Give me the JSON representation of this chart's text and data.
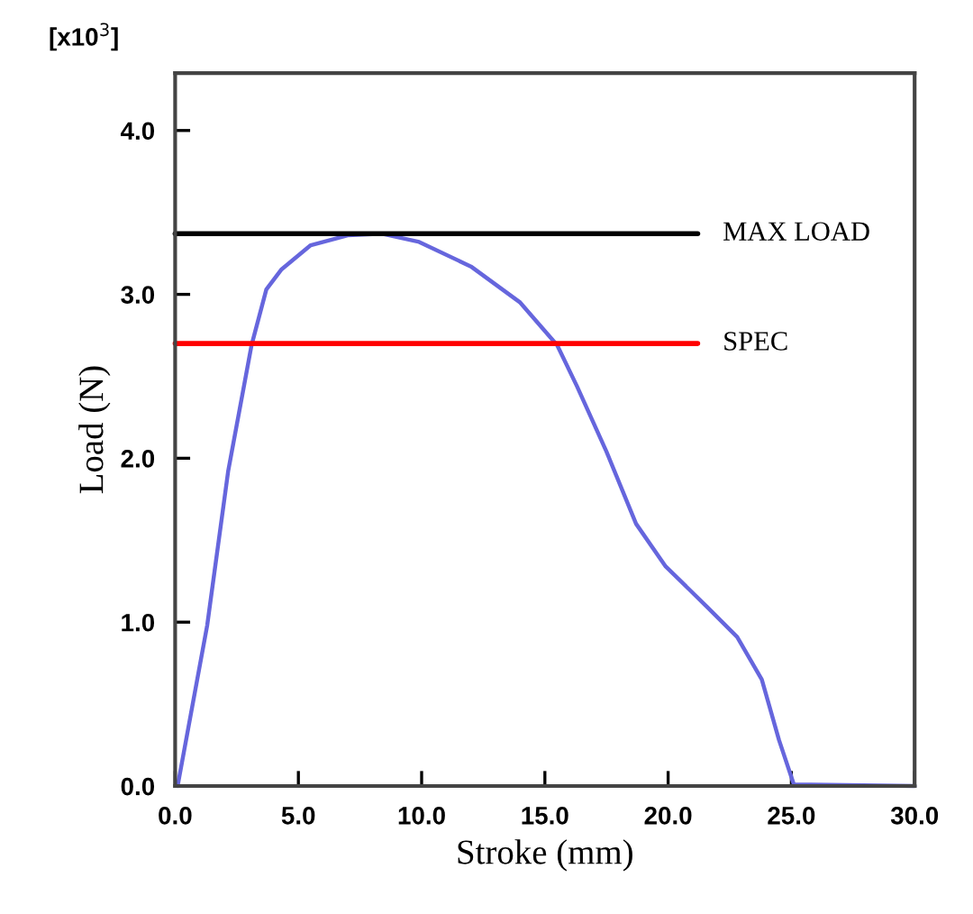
{
  "chart_data": {
    "type": "line",
    "xlabel": "Stroke (mm)",
    "ylabel": "Load (N)",
    "annotations": [
      "[x10$^{3}$]"
    ],
    "xlim": [
      0,
      30
    ],
    "xticks": [
      {
        "value": 0,
        "label": "0.0"
      },
      {
        "value": 5,
        "label": "5.0"
      },
      {
        "value": 10,
        "label": "10.0"
      },
      {
        "value": 15,
        "label": "15.0"
      },
      {
        "value": 20,
        "label": "20.0"
      },
      {
        "value": 25,
        "label": "25.0"
      },
      {
        "value": 30,
        "label": "30.0"
      }
    ],
    "ylim": [
      0,
      4.35
    ],
    "yticks": [
      {
        "value": 0,
        "label": "0.0"
      },
      {
        "value": 1,
        "label": "1.0"
      },
      {
        "value": 2,
        "label": "2.0"
      },
      {
        "value": 3,
        "label": "3.0"
      },
      {
        "value": 4,
        "label": "4.0"
      }
    ],
    "grid": false,
    "legend": false,
    "marker": "none",
    "line_style": "solid",
    "series": [
      {
        "color": "#6666dd",
        "x": [
          0.1,
          1.3,
          2.15,
          3.1,
          3.7,
          4.3,
          5.5,
          7.0,
          8.4,
          9.9,
          12.0,
          14.0,
          15.5,
          16.3,
          17.5,
          18.7,
          19.9,
          21.6,
          22.8,
          23.8,
          24.5,
          25.1,
          30.0
        ],
        "values": [
          0,
          0.98,
          1.92,
          2.69,
          3.03,
          3.15,
          3.3,
          3.36,
          3.37,
          3.32,
          3.17,
          2.95,
          2.69,
          2.44,
          2.04,
          1.6,
          1.34,
          1.09,
          0.91,
          0.65,
          0.28,
          0.01,
          0
        ]
      },
      {
        "name": "MAX LOAD",
        "color": "#000000",
        "x": [
          0,
          21.2
        ],
        "values": [
          3.37,
          3.37
        ]
      },
      {
        "name": "SPEC",
        "color": "#ff0000",
        "x": [
          0,
          21.2
        ],
        "values": [
          2.7,
          2.7
        ]
      }
    ]
  }
}
